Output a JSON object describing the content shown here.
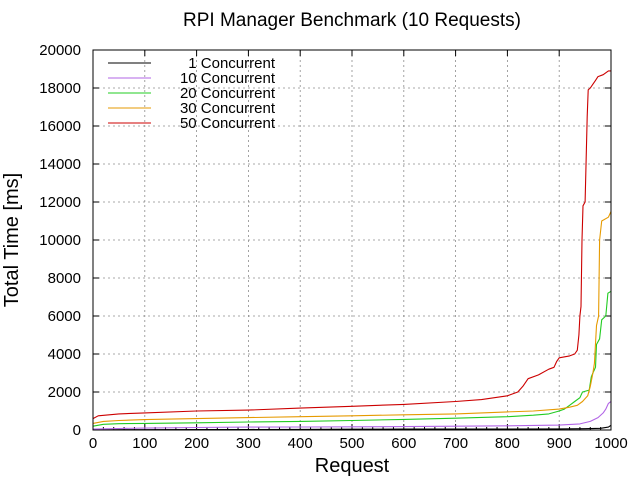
{
  "chart_data": {
    "type": "line",
    "title": "RPI Manager Benchmark (10 Requests)",
    "xlabel": "Request",
    "ylabel": "Total Time [ms]",
    "xlim": [
      0,
      1000
    ],
    "ylim": [
      0,
      20000
    ],
    "xticks": [
      0,
      100,
      200,
      300,
      400,
      500,
      600,
      700,
      800,
      900,
      1000
    ],
    "yticks": [
      0,
      2000,
      4000,
      6000,
      8000,
      10000,
      12000,
      14000,
      16000,
      18000,
      20000
    ],
    "grid": true,
    "legend_position": "top-left",
    "series": [
      {
        "name": "1 Concurrent",
        "color": "#000000",
        "points": [
          [
            0,
            10
          ],
          [
            100,
            15
          ],
          [
            200,
            20
          ],
          [
            300,
            25
          ],
          [
            400,
            30
          ],
          [
            500,
            40
          ],
          [
            600,
            45
          ],
          [
            700,
            50
          ],
          [
            800,
            55
          ],
          [
            900,
            60
          ],
          [
            950,
            70
          ],
          [
            980,
            90
          ],
          [
            995,
            150
          ],
          [
            1000,
            250
          ]
        ]
      },
      {
        "name": "10 Concurrent",
        "color": "#b266e6",
        "points": [
          [
            0,
            50
          ],
          [
            50,
            80
          ],
          [
            100,
            100
          ],
          [
            200,
            130
          ],
          [
            300,
            150
          ],
          [
            400,
            160
          ],
          [
            500,
            170
          ],
          [
            600,
            180
          ],
          [
            700,
            200
          ],
          [
            800,
            220
          ],
          [
            900,
            260
          ],
          [
            940,
            320
          ],
          [
            960,
            450
          ],
          [
            975,
            650
          ],
          [
            985,
            900
          ],
          [
            990,
            1100
          ],
          [
            995,
            1400
          ],
          [
            1000,
            1500
          ]
        ]
      },
      {
        "name": "20 Concurrent",
        "color": "#22cc22",
        "points": [
          [
            0,
            200
          ],
          [
            20,
            300
          ],
          [
            50,
            330
          ],
          [
            100,
            350
          ],
          [
            200,
            380
          ],
          [
            300,
            420
          ],
          [
            400,
            450
          ],
          [
            500,
            500
          ],
          [
            600,
            560
          ],
          [
            700,
            620
          ],
          [
            800,
            700
          ],
          [
            850,
            780
          ],
          [
            880,
            850
          ],
          [
            900,
            1000
          ],
          [
            910,
            1100
          ],
          [
            920,
            1300
          ],
          [
            930,
            1500
          ],
          [
            940,
            1700
          ],
          [
            945,
            2000
          ],
          [
            958,
            2100
          ],
          [
            962,
            2800
          ],
          [
            965,
            3000
          ],
          [
            970,
            3300
          ],
          [
            972,
            4500
          ],
          [
            978,
            4800
          ],
          [
            982,
            5800
          ],
          [
            990,
            6000
          ],
          [
            994,
            7200
          ],
          [
            1000,
            7300
          ]
        ]
      },
      {
        "name": "30 Concurrent",
        "color": "#e69a00",
        "points": [
          [
            0,
            350
          ],
          [
            20,
            450
          ],
          [
            50,
            500
          ],
          [
            100,
            550
          ],
          [
            200,
            600
          ],
          [
            300,
            650
          ],
          [
            400,
            700
          ],
          [
            500,
            750
          ],
          [
            600,
            800
          ],
          [
            700,
            850
          ],
          [
            800,
            950
          ],
          [
            850,
            1000
          ],
          [
            900,
            1100
          ],
          [
            920,
            1200
          ],
          [
            935,
            1300
          ],
          [
            945,
            1500
          ],
          [
            955,
            1800
          ],
          [
            960,
            2300
          ],
          [
            965,
            3000
          ],
          [
            968,
            3500
          ],
          [
            972,
            5500
          ],
          [
            976,
            6000
          ],
          [
            978,
            10000
          ],
          [
            982,
            11000
          ],
          [
            995,
            11200
          ],
          [
            1000,
            11500
          ]
        ]
      },
      {
        "name": "50 Concurrent",
        "color": "#cc0000",
        "points": [
          [
            0,
            600
          ],
          [
            10,
            750
          ],
          [
            50,
            850
          ],
          [
            100,
            900
          ],
          [
            200,
            1000
          ],
          [
            300,
            1050
          ],
          [
            400,
            1150
          ],
          [
            500,
            1250
          ],
          [
            600,
            1350
          ],
          [
            700,
            1500
          ],
          [
            750,
            1600
          ],
          [
            800,
            1800
          ],
          [
            820,
            2000
          ],
          [
            830,
            2300
          ],
          [
            840,
            2700
          ],
          [
            860,
            2900
          ],
          [
            880,
            3200
          ],
          [
            890,
            3300
          ],
          [
            895,
            3600
          ],
          [
            900,
            3800
          ],
          [
            920,
            3900
          ],
          [
            930,
            4000
          ],
          [
            935,
            4200
          ],
          [
            938,
            5000
          ],
          [
            940,
            6000
          ],
          [
            942,
            6500
          ],
          [
            944,
            10000
          ],
          [
            946,
            11800
          ],
          [
            950,
            12000
          ],
          [
            954,
            16500
          ],
          [
            956,
            17900
          ],
          [
            960,
            18000
          ],
          [
            965,
            18200
          ],
          [
            970,
            18400
          ],
          [
            975,
            18600
          ],
          [
            985,
            18700
          ],
          [
            995,
            18900
          ],
          [
            1000,
            18900
          ]
        ]
      }
    ]
  }
}
